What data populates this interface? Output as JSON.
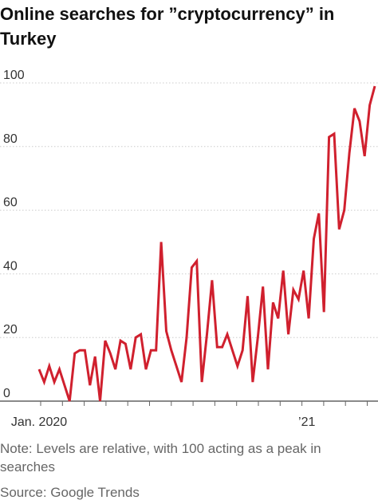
{
  "header": {
    "title": "Online searches for ”cryptocurrency” in Turkey"
  },
  "footer": {
    "note": "Note: Levels are relative, with 100 acting as a peak in searches",
    "source": "Source: Google Trends"
  },
  "colors": {
    "line": "#d0202e",
    "grid": "#cccccc",
    "text": "#333333",
    "footer_text": "#666666"
  },
  "chart_data": {
    "type": "line",
    "title": "Online searches for ”cryptocurrency” in Turkey",
    "xlabel": "",
    "ylabel": "",
    "ylim": [
      0,
      100
    ],
    "yticks": [
      0,
      20,
      40,
      60,
      80,
      100
    ],
    "grid": true,
    "x_tick_labels": [
      "Jan. 2020",
      "’21"
    ],
    "series": [
      {
        "values": [
          10,
          6,
          11,
          6,
          10,
          5,
          0,
          15,
          16,
          16,
          5,
          14,
          0,
          19,
          15,
          10,
          19,
          18,
          10,
          20,
          21,
          10,
          16,
          16,
          50,
          22,
          16,
          11,
          6,
          20,
          42,
          44,
          6,
          21,
          38,
          17,
          17,
          21,
          16,
          11,
          16,
          33,
          6,
          20,
          36,
          10,
          31,
          26,
          41,
          21,
          35,
          32,
          41,
          26,
          51,
          59,
          28,
          83,
          84,
          54,
          60,
          78,
          92,
          88,
          77,
          93,
          99
        ]
      }
    ]
  }
}
